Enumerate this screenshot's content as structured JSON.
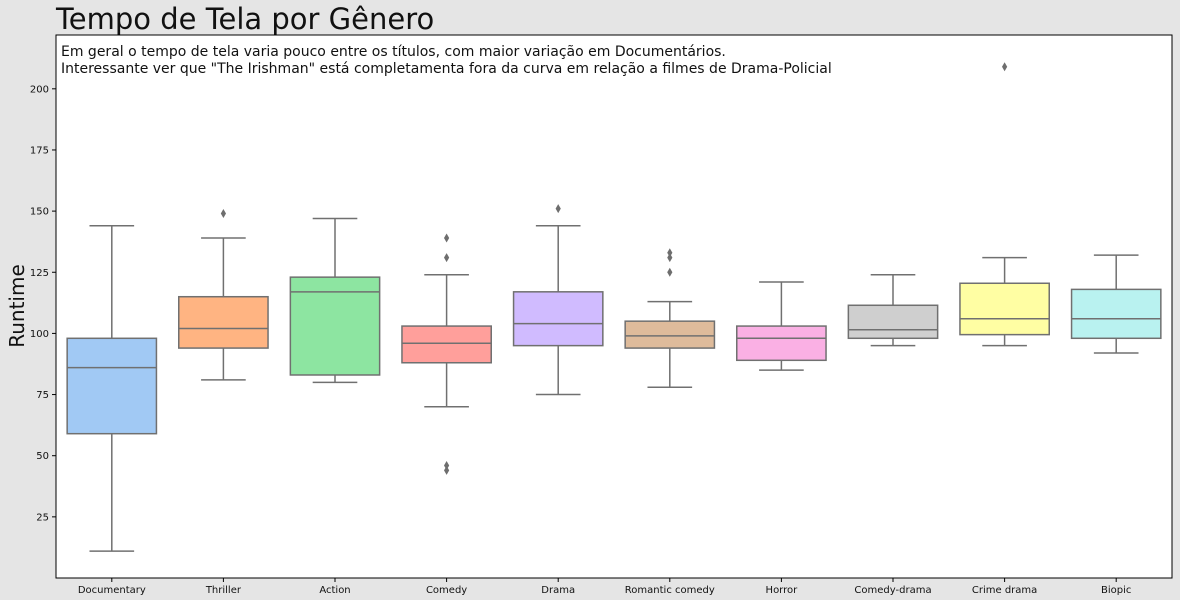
{
  "chart_data": {
    "type": "boxplot",
    "title": "Tempo de Tela por Gênero",
    "annotation": [
      "Em geral o tempo de tela varia pouco entre os títulos, com maior variação em Documentários.",
      "Interessante ver que \"The Irishman\" está completamenta fora da curva em relação a filmes de Drama-Policial"
    ],
    "xlabel": "",
    "ylabel": "Runtime",
    "ylim": [
      0,
      222
    ],
    "yticks": [
      25,
      50,
      75,
      100,
      125,
      150,
      175,
      200
    ],
    "grid": false,
    "categories": [
      "Documentary",
      "Thriller",
      "Action",
      "Comedy",
      "Drama",
      "Romantic comedy",
      "Horror",
      "Comedy-drama",
      "Crime drama",
      "Biopic"
    ],
    "boxes": [
      {
        "category": "Documentary",
        "whisker_low": 11,
        "q1": 59,
        "median": 86,
        "q3": 98,
        "whisker_high": 144,
        "outliers": [],
        "color": "#a1c9f4"
      },
      {
        "category": "Thriller",
        "whisker_low": 81,
        "q1": 94,
        "median": 102,
        "q3": 115,
        "whisker_high": 139,
        "outliers": [
          149
        ],
        "color": "#ffb482"
      },
      {
        "category": "Action",
        "whisker_low": 80,
        "q1": 83,
        "median": 117,
        "q3": 123,
        "whisker_high": 147,
        "outliers": [],
        "color": "#8de5a1"
      },
      {
        "category": "Comedy",
        "whisker_low": 70,
        "q1": 88,
        "median": 96,
        "q3": 103,
        "whisker_high": 124,
        "outliers": [
          139,
          131,
          46,
          44
        ],
        "color": "#ff9f9b"
      },
      {
        "category": "Drama",
        "whisker_low": 75,
        "q1": 95,
        "median": 104,
        "q3": 117,
        "whisker_high": 144,
        "outliers": [
          151
        ],
        "color": "#d0bbff"
      },
      {
        "category": "Romantic comedy",
        "whisker_low": 78,
        "q1": 94,
        "median": 99,
        "q3": 105,
        "whisker_high": 113,
        "outliers": [
          133,
          131,
          125
        ],
        "color": "#debb9b"
      },
      {
        "category": "Horror",
        "whisker_low": 85,
        "q1": 89,
        "median": 98,
        "q3": 103,
        "whisker_high": 121,
        "outliers": [],
        "color": "#fab0e4"
      },
      {
        "category": "Comedy-drama",
        "whisker_low": 95,
        "q1": 98,
        "median": 101.5,
        "q3": 111.5,
        "whisker_high": 124,
        "outliers": [],
        "color": "#cfcfcf"
      },
      {
        "category": "Crime drama",
        "whisker_low": 95,
        "q1": 99.5,
        "median": 106,
        "q3": 120.5,
        "whisker_high": 131,
        "outliers": [
          209
        ],
        "color": "#fffea3"
      },
      {
        "category": "Biopic",
        "whisker_low": 92,
        "q1": 98,
        "median": 106,
        "q3": 118,
        "whisker_high": 132,
        "outliers": [],
        "color": "#b9f2f0"
      }
    ],
    "box_edge_color": "#707070",
    "plot_background": "#ffffff",
    "figure_background": "#e5e5e5"
  }
}
